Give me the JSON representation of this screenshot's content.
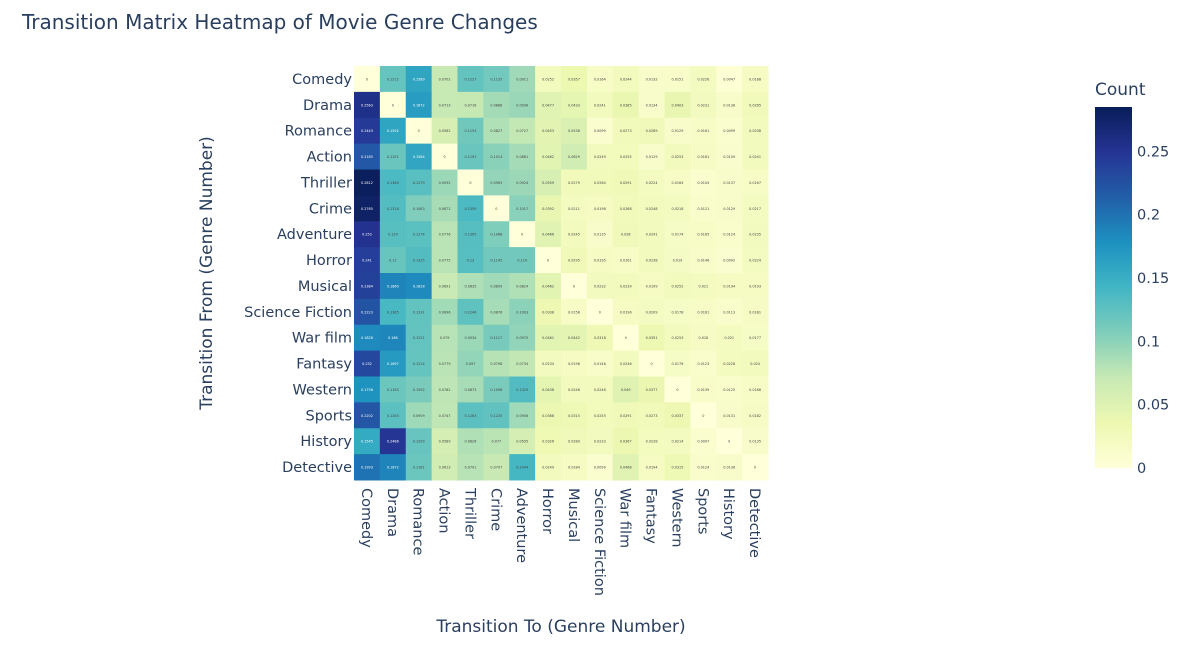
{
  "chart_data": {
    "type": "heatmap",
    "title": "Transition Matrix Heatmap of Movie Genre Changes",
    "xlabel": "Transition To (Genre Number)",
    "ylabel": "Transition From (Genre Number)",
    "colorbar_title": "Count",
    "colorscale": "YlGnBu",
    "zmin": 0,
    "zmax": 0.285,
    "colorbar_ticks": [
      0,
      0.05,
      0.1,
      0.15,
      0.2,
      0.25
    ],
    "colorbar_tick_labels": [
      "0",
      "0.05",
      "0.1",
      "0.15",
      "0.2",
      "0.25"
    ],
    "x_categories": [
      "Comedy",
      "Drama",
      "Romance",
      "Action",
      "Thriller",
      "Crime",
      "Adventure",
      "Horror",
      "Musical",
      "Science Fiction",
      "War film",
      "Fantasy",
      "Western",
      "Sports",
      "History",
      "Detective"
    ],
    "y_categories": [
      "Comedy",
      "Drama",
      "Romance",
      "Action",
      "Thriller",
      "Crime",
      "Adventure",
      "Horror",
      "Musical",
      "Science Fiction",
      "War film",
      "Fantasy",
      "Western",
      "Sports",
      "History",
      "Detective"
    ],
    "z": [
      [
        0,
        0.1212,
        0.1589,
        0.0702,
        0.1227,
        0.1135,
        0.0911,
        0.0252,
        0.0357,
        0.0164,
        0.0244,
        0.0132,
        0.0151,
        0.0226,
        0.0047,
        0.0188
      ],
      [
        0.2563,
        0,
        0.1672,
        0.0713,
        0.0718,
        0.0888,
        0.0936,
        0.0477,
        0.0433,
        0.0241,
        0.0385,
        0.0134,
        0.0403,
        0.0231,
        0.0138,
        0.0265
      ],
      [
        0.2443,
        0.1592,
        0,
        0.0562,
        0.1153,
        0.0827,
        0.0727,
        0.0453,
        0.0538,
        0.0099,
        0.0273,
        0.0289,
        0.0129,
        0.0161,
        0.0099,
        0.0238
      ],
      [
        0.2185,
        0.1191,
        0.1584,
        0,
        0.1191,
        0.1014,
        0.0881,
        0.0462,
        0.0629,
        0.0249,
        0.0255,
        0.0129,
        0.0253,
        0.0181,
        0.0109,
        0.0241
      ],
      [
        0.2812,
        0.1364,
        0.1279,
        0.0932,
        0,
        0.0963,
        0.0924,
        0.0559,
        0.0279,
        0.0264,
        0.0291,
        0.0224,
        0.0164,
        0.0104,
        0.0137,
        0.0167
      ],
      [
        0.2765,
        0.1318,
        0.1063,
        0.0872,
        0.1359,
        0,
        0.1017,
        0.0392,
        0.0211,
        0.0198,
        0.0268,
        0.0248,
        0.0218,
        0.0121,
        0.0129,
        0.0217
      ],
      [
        0.253,
        0.129,
        0.1274,
        0.0776,
        0.1305,
        0.1068,
        0,
        0.0466,
        0.0245,
        0.0135,
        0.028,
        0.0241,
        0.0174,
        0.0165,
        0.0124,
        0.0235
      ],
      [
        0.241,
        0.12,
        0.1325,
        0.0775,
        0.13,
        0.1145,
        0.114,
        0,
        0.0295,
        0.0195,
        0.0161,
        0.0238,
        0.019,
        0.0146,
        0.0092,
        0.0224
      ],
      [
        0.2384,
        0.1869,
        0.1828,
        0.0691,
        0.0835,
        0.0899,
        0.0824,
        0.0462,
        0,
        0.0232,
        0.0239,
        0.0199,
        0.0252,
        0.021,
        0.0194,
        0.0193
      ],
      [
        0.2223,
        0.1385,
        0.1231,
        0.0896,
        0.1246,
        0.0876,
        0.1003,
        0.0338,
        0.0158,
        0,
        0.0196,
        0.0209,
        0.0178,
        0.0161,
        0.0113,
        0.0181
      ],
      [
        0.1828,
        0.186,
        0.1221,
        0.079,
        0.0934,
        0.1117,
        0.0975,
        0.0461,
        0.0442,
        0.0318,
        0,
        0.0351,
        0.0253,
        0.018,
        0.021,
        0.0177
      ],
      [
        0.232,
        0.1697,
        0.1214,
        0.0779,
        0.097,
        0.0798,
        0.0734,
        0.0234,
        0.0196,
        0.0146,
        0.0246,
        0,
        0.0176,
        0.0123,
        0.0228,
        0.024
      ],
      [
        0.1758,
        0.1183,
        0.1092,
        0.0762,
        0.0873,
        0.1096,
        0.1329,
        0.0438,
        0.0246,
        0.0246,
        0.049,
        0.0377,
        0,
        0.0139,
        0.0125,
        0.0166
      ],
      [
        0.2202,
        0.1263,
        0.0909,
        0.0747,
        0.1263,
        0.1235,
        0.0906,
        0.0368,
        0.0315,
        0.0255,
        0.0291,
        0.0273,
        0.0337,
        0,
        0.0131,
        0.0182
      ],
      [
        0.1545,
        0.2486,
        0.1209,
        0.0589,
        0.0826,
        0.077,
        0.0595,
        0.0326,
        0.0289,
        0.0233,
        0.0367,
        0.0228,
        0.0214,
        0.0097,
        0,
        0.0135
      ],
      [
        0.1993,
        0.1872,
        0.1181,
        0.0613,
        0.0791,
        0.0707,
        0.1404,
        0.0249,
        0.0184,
        0.0099,
        0.0468,
        0.0194,
        0.0315,
        0.0124,
        0.0136,
        0
      ]
    ]
  }
}
